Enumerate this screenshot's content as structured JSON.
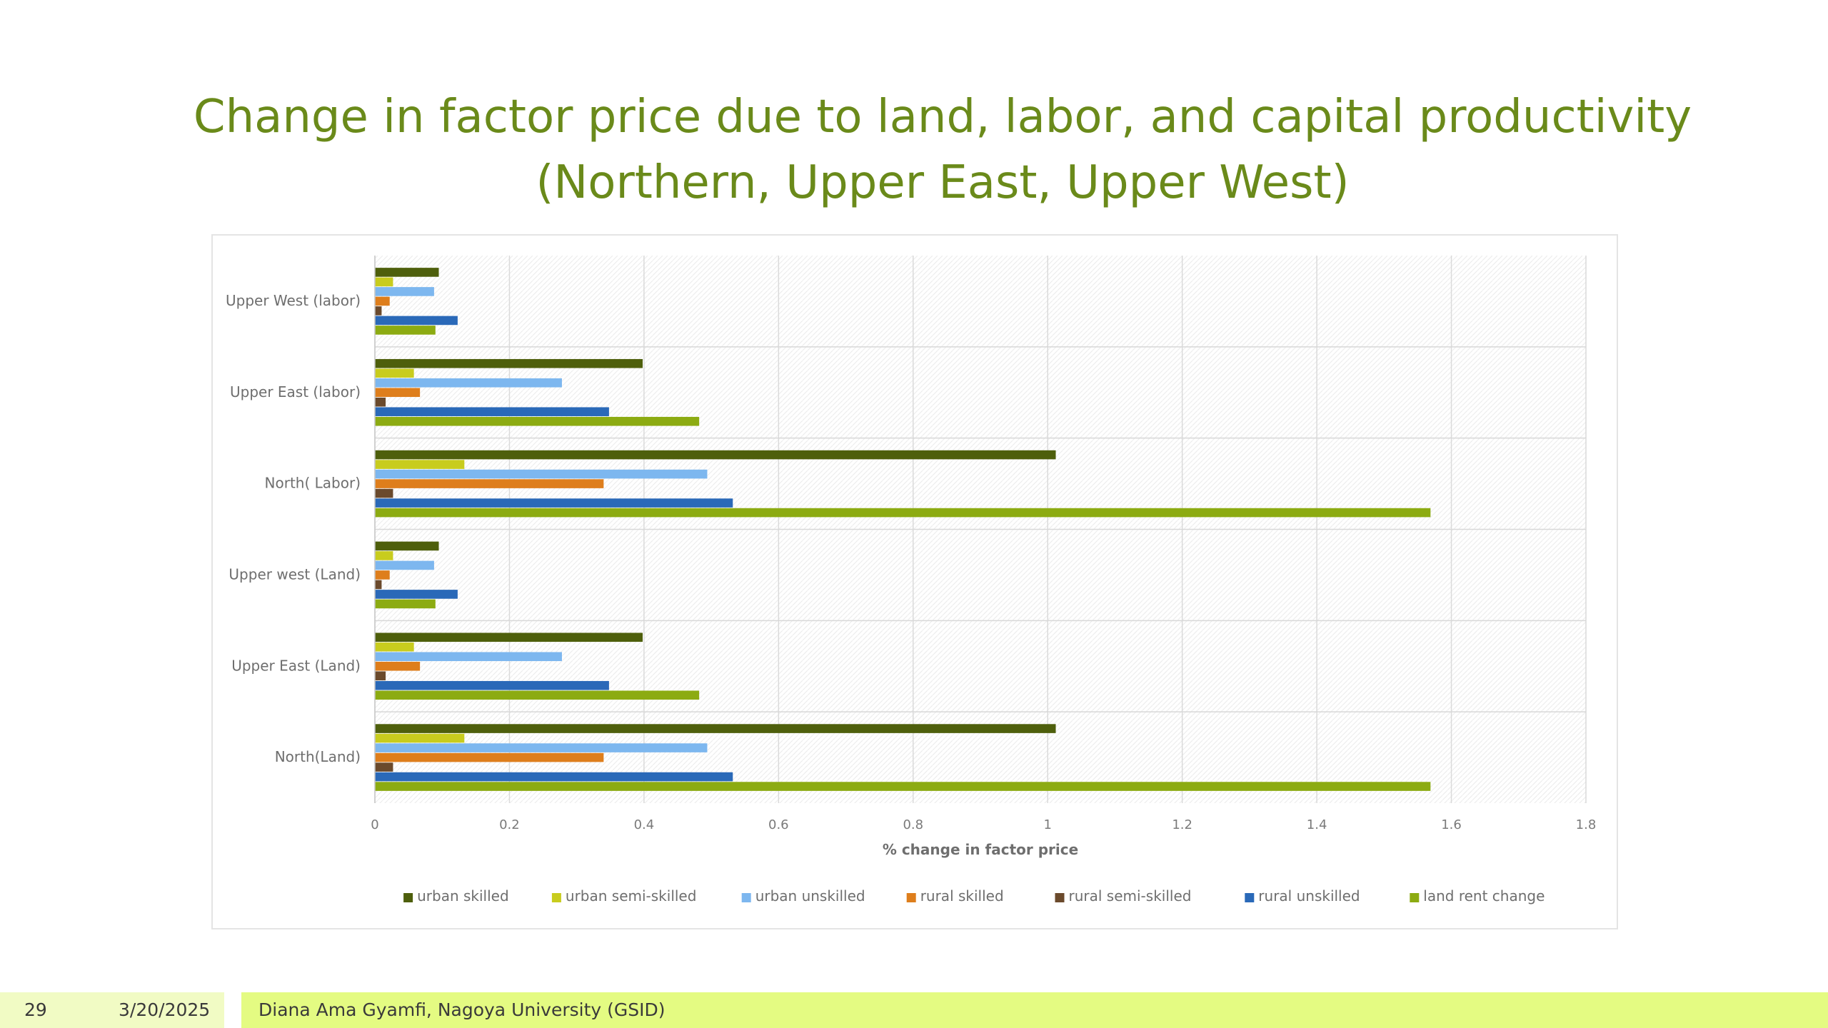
{
  "slide": {
    "title_line1": "Change in factor price due to land, labor, and capital productivity",
    "title_line2": "(Northern, Upper East, Upper West)",
    "footer": {
      "page_number": "29",
      "date": "3/20/2025",
      "author": "Diana Ama Gyamfi, Nagoya University (GSID)"
    }
  },
  "chart_data": {
    "type": "bar",
    "orientation": "horizontal",
    "xlabel": "% change in factor price",
    "xlim": [
      0,
      1.8
    ],
    "xticks": [
      "0",
      "0.2",
      "0.4",
      "0.6",
      "0.8",
      "1",
      "1.2",
      "1.4",
      "1.6",
      "1.8"
    ],
    "categories": [
      "Upper West (labor)",
      "Upper East (labor)",
      "North( Labor)",
      "Upper west (Land)",
      "Upper East (Land)",
      "North(Land)"
    ],
    "legend_position": "bottom",
    "grid": true,
    "series": [
      {
        "name": "urban skilled",
        "color": "#4e5f0c",
        "values": [
          0.095,
          0.398,
          1.012,
          0.095,
          0.398,
          1.012
        ]
      },
      {
        "name": "urban semi-skilled",
        "color": "#c8cc1e",
        "values": [
          0.027,
          0.058,
          0.133,
          0.027,
          0.058,
          0.133
        ]
      },
      {
        "name": "urban unskilled",
        "color": "#7db7ef",
        "values": [
          0.088,
          0.278,
          0.494,
          0.088,
          0.278,
          0.494
        ]
      },
      {
        "name": "rural skilled",
        "color": "#de7e1c",
        "values": [
          0.022,
          0.067,
          0.34,
          0.022,
          0.067,
          0.34
        ]
      },
      {
        "name": "rural semi-skilled",
        "color": "#6b4a2c",
        "values": [
          0.01,
          0.016,
          0.027,
          0.01,
          0.016,
          0.027
        ]
      },
      {
        "name": "rural unskilled",
        "color": "#2a69b8",
        "values": [
          0.123,
          0.348,
          0.532,
          0.123,
          0.348,
          0.532
        ]
      },
      {
        "name": "land rent change",
        "color": "#8cab12",
        "values": [
          0.09,
          0.482,
          1.569,
          0.09,
          0.482,
          1.569
        ]
      }
    ]
  }
}
